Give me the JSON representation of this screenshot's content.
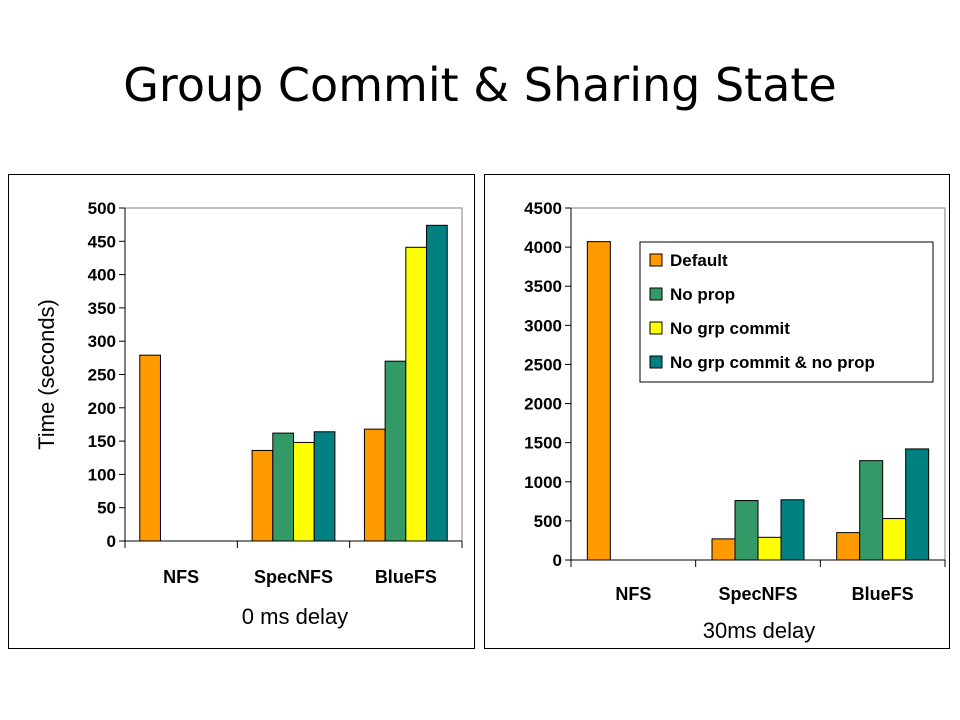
{
  "slide": {
    "title": "Group Commit & Sharing State"
  },
  "colors": {
    "Default": "#ff9900",
    "No prop": "#339966",
    "No grp commit": "#ffff00",
    "No grp commit & no prop": "#008080"
  },
  "chart_data": [
    {
      "type": "bar",
      "categories": [
        "NFS",
        "SpecNFS",
        "BlueFS"
      ],
      "series": [
        {
          "name": "Default",
          "values": [
            279,
            136,
            168
          ]
        },
        {
          "name": "No prop",
          "values": [
            null,
            162,
            270
          ]
        },
        {
          "name": "No grp commit",
          "values": [
            null,
            148,
            441
          ]
        },
        {
          "name": "No grp commit & no prop",
          "values": [
            null,
            164,
            474
          ]
        }
      ],
      "xlabel": "0 ms delay",
      "ylabel": "Time (seconds)",
      "ylim": [
        0,
        500
      ],
      "yticks": [
        0,
        50,
        100,
        150,
        200,
        250,
        300,
        350,
        400,
        450,
        500
      ],
      "legend": false,
      "grid": false
    },
    {
      "type": "bar",
      "categories": [
        "NFS",
        "SpecNFS",
        "BlueFS"
      ],
      "series": [
        {
          "name": "Default",
          "values": [
            4070,
            270,
            350
          ]
        },
        {
          "name": "No prop",
          "values": [
            null,
            760,
            1270
          ]
        },
        {
          "name": "No grp commit",
          "values": [
            null,
            290,
            530
          ]
        },
        {
          "name": "No grp commit & no prop",
          "values": [
            null,
            770,
            1420
          ]
        }
      ],
      "xlabel": "30ms delay",
      "ylabel": "",
      "ylim": [
        0,
        4500
      ],
      "yticks": [
        0,
        500,
        1000,
        1500,
        2000,
        2500,
        3000,
        3500,
        4000,
        4500
      ],
      "legend": true,
      "legend_position": "top-right",
      "grid": false
    }
  ]
}
